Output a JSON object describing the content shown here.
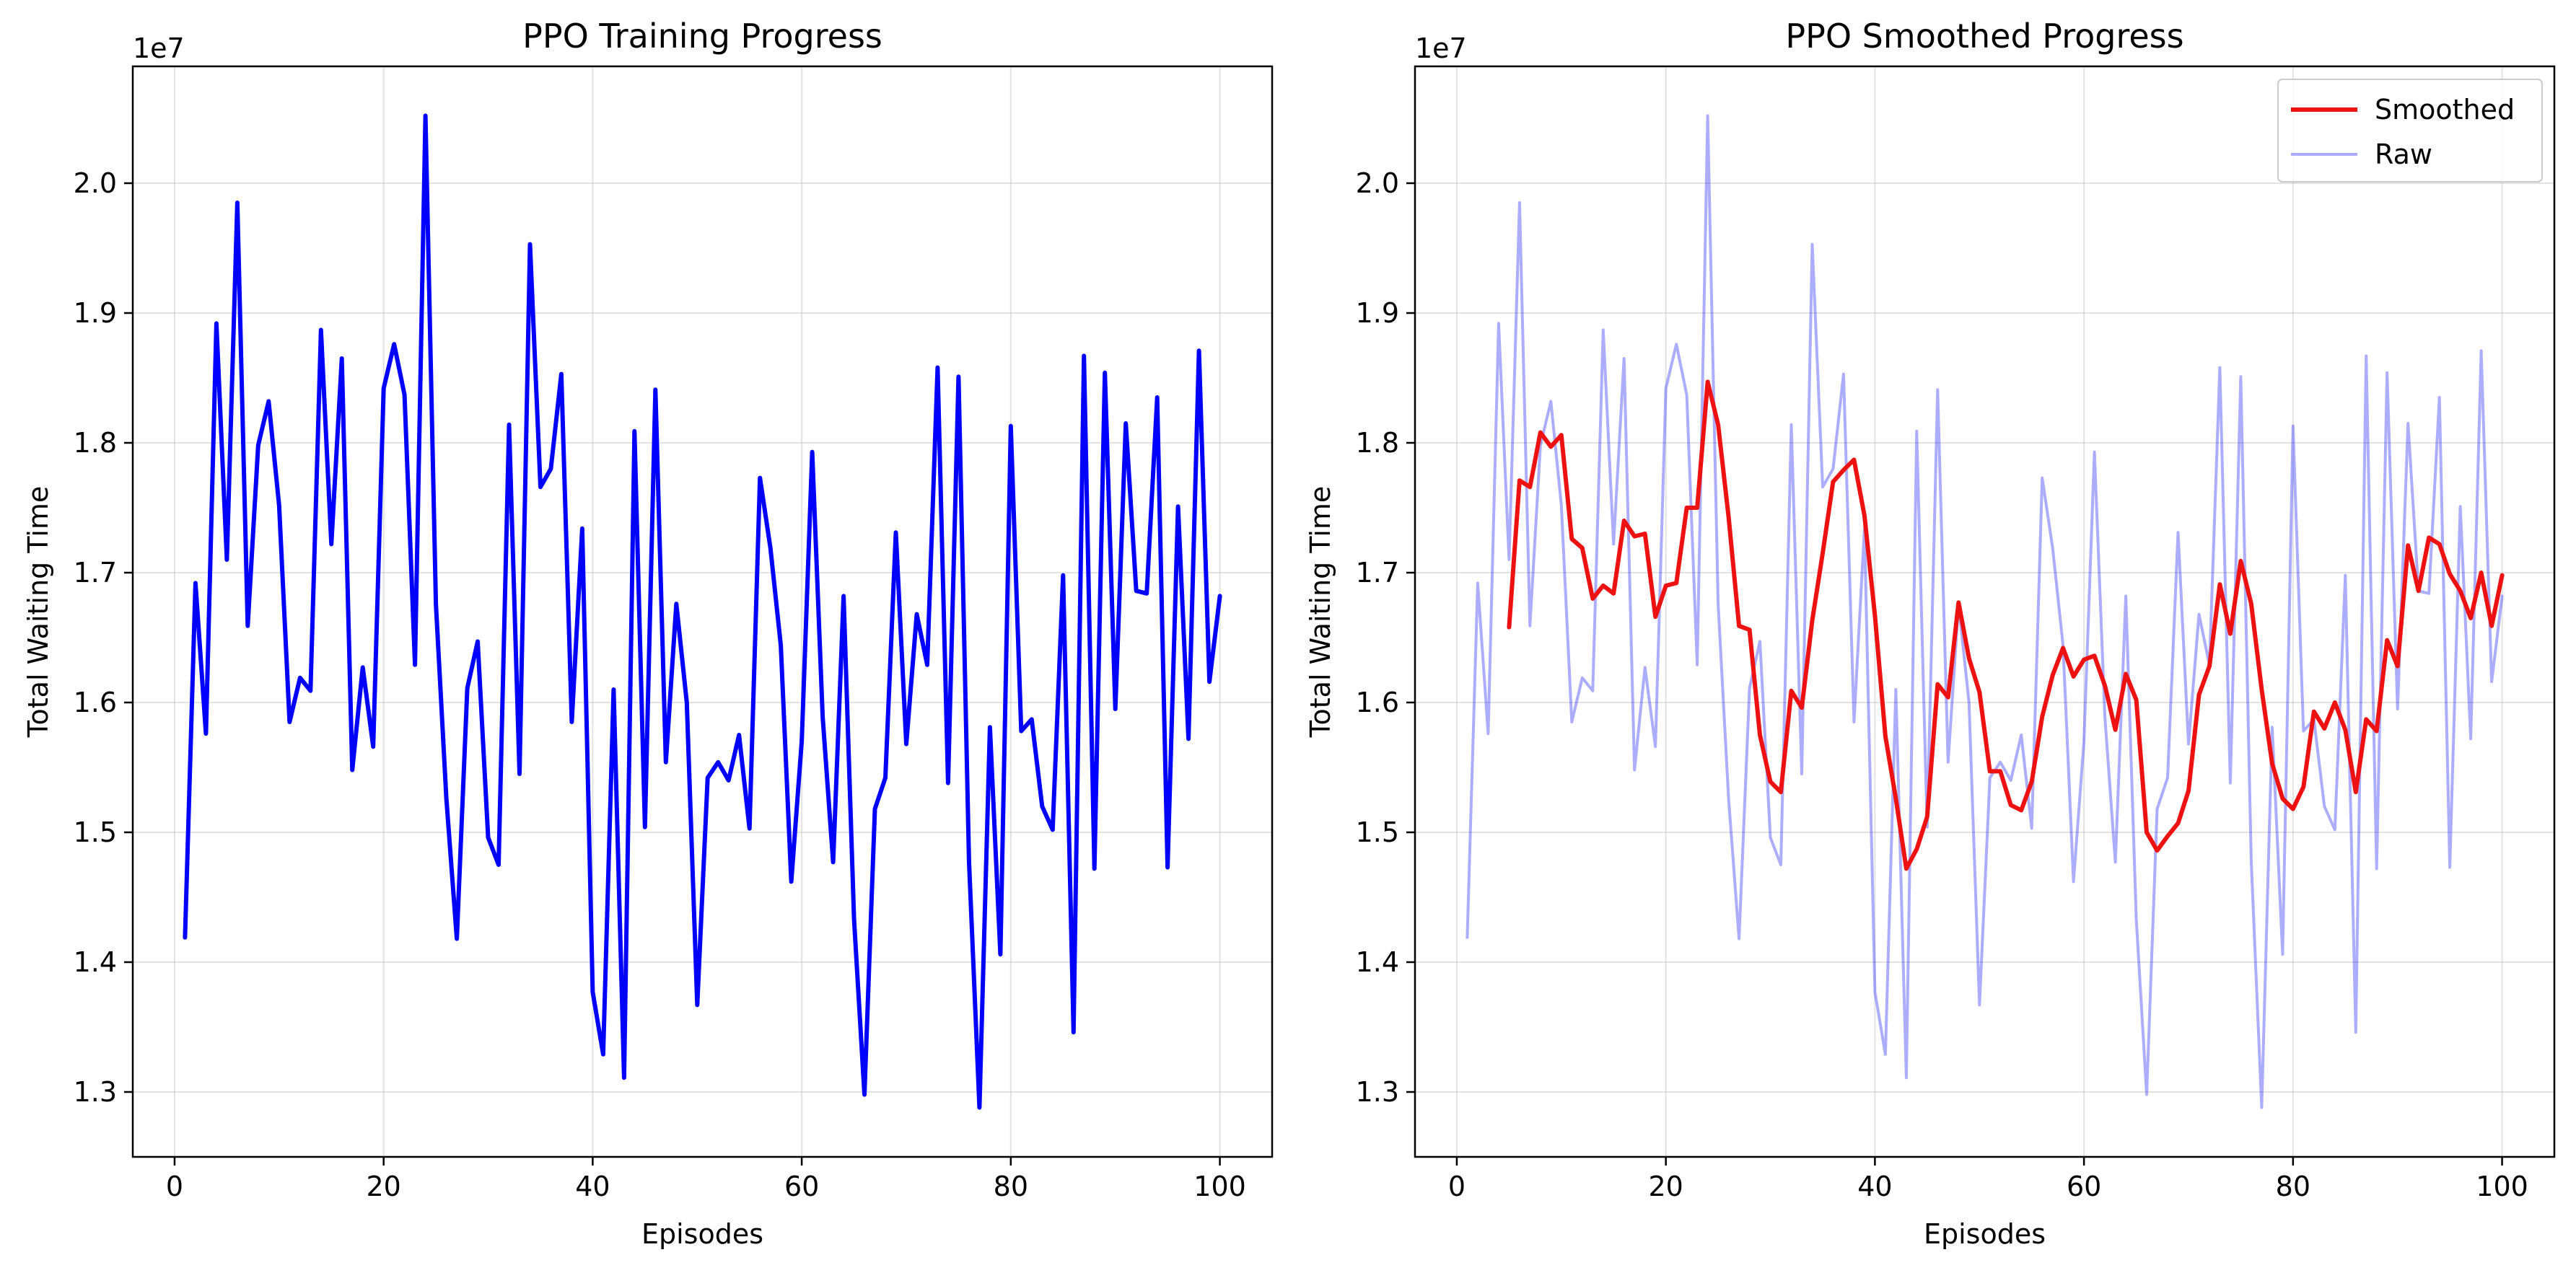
{
  "colors": {
    "raw_series": "#0000ff",
    "smoothed_series": "#ee1111",
    "raw_faded": "#0000ff",
    "grid": "#b0b0b0",
    "axes": "#000000",
    "background": "#ffffff"
  },
  "chart_data": [
    {
      "type": "line",
      "title": "PPO Training Progress",
      "xlabel": "Episodes",
      "ylabel": "Total Waiting Time",
      "y_offset_label": "1e7",
      "xlim": [
        -4,
        105
      ],
      "ylim": [
        1.25,
        2.09
      ],
      "xticks": [
        "0",
        "20",
        "40",
        "60",
        "80",
        "100"
      ],
      "xtick_values": [
        0,
        20,
        40,
        60,
        80,
        100
      ],
      "yticks": [
        "1.3",
        "1.4",
        "1.5",
        "1.6",
        "1.7",
        "1.8",
        "1.9",
        "2.0"
      ],
      "ytick_values": [
        1.3,
        1.4,
        1.5,
        1.6,
        1.7,
        1.8,
        1.9,
        2.0
      ],
      "grid": true,
      "series": [
        {
          "x": [
            1,
            2,
            3,
            4,
            5,
            6,
            7,
            8,
            9,
            10,
            11,
            12,
            13,
            14,
            15,
            16,
            17,
            18,
            19,
            20,
            21,
            22,
            23,
            24,
            25,
            26,
            27,
            28,
            29,
            30,
            31,
            32,
            33,
            34,
            35,
            36,
            37,
            38,
            39,
            40,
            41,
            42,
            43,
            44,
            45,
            46,
            47,
            48,
            49,
            50,
            51,
            52,
            53,
            54,
            55,
            56,
            57,
            58,
            59,
            60,
            61,
            62,
            63,
            64,
            65,
            66,
            67,
            68,
            69,
            70,
            71,
            72,
            73,
            74,
            75,
            76,
            77,
            78,
            79,
            80,
            81,
            82,
            83,
            84,
            85,
            86,
            87,
            88,
            89,
            90,
            91,
            92,
            93,
            94,
            95,
            96,
            97,
            98,
            99,
            100
          ],
          "values": [
            1.419,
            1.692,
            1.576,
            1.892,
            1.71,
            1.985,
            1.659,
            1.798,
            1.832,
            1.752,
            1.585,
            1.619,
            1.609,
            1.887,
            1.722,
            1.865,
            1.548,
            1.627,
            1.566,
            1.842,
            1.876,
            1.837,
            1.629,
            2.052,
            1.676,
            1.526,
            1.418,
            1.611,
            1.647,
            1.496,
            1.475,
            1.814,
            1.545,
            1.953,
            1.766,
            1.78,
            1.853,
            1.585,
            1.734,
            1.377,
            1.329,
            1.61,
            1.311,
            1.809,
            1.504,
            1.841,
            1.554,
            1.676,
            1.6,
            1.367,
            1.542,
            1.554,
            1.54,
            1.575,
            1.503,
            1.773,
            1.719,
            1.644,
            1.462,
            1.57,
            1.793,
            1.589,
            1.477,
            1.682,
            1.433,
            1.298,
            1.518,
            1.542,
            1.731,
            1.568,
            1.668,
            1.629,
            1.858,
            1.538,
            1.851,
            1.478,
            1.288,
            1.581,
            1.406,
            1.813,
            1.578,
            1.587,
            1.52,
            1.502,
            1.698,
            1.346,
            1.867,
            1.472,
            1.854,
            1.595,
            1.815,
            1.686,
            1.684,
            1.835,
            1.473,
            1.751,
            1.572,
            1.871,
            1.616,
            1.682
          ]
        }
      ]
    },
    {
      "type": "line",
      "title": "PPO Smoothed Progress",
      "xlabel": "Episodes",
      "ylabel": "Total Waiting Time",
      "y_offset_label": "1e7",
      "xlim": [
        -4,
        105
      ],
      "ylim": [
        1.25,
        2.09
      ],
      "xticks": [
        "0",
        "20",
        "40",
        "60",
        "80",
        "100"
      ],
      "xtick_values": [
        0,
        20,
        40,
        60,
        80,
        100
      ],
      "yticks": [
        "1.3",
        "1.4",
        "1.5",
        "1.6",
        "1.7",
        "1.8",
        "1.9",
        "2.0"
      ],
      "ytick_values": [
        1.3,
        1.4,
        1.5,
        1.6,
        1.7,
        1.8,
        1.9,
        2.0
      ],
      "grid": true,
      "legend_position": "top-right",
      "series": [
        {
          "name": "Smoothed",
          "x": [
            5,
            6,
            7,
            8,
            9,
            10,
            11,
            12,
            13,
            14,
            15,
            16,
            17,
            18,
            19,
            20,
            21,
            22,
            23,
            24,
            25,
            26,
            27,
            28,
            29,
            30,
            31,
            32,
            33,
            34,
            35,
            36,
            37,
            38,
            39,
            40,
            41,
            42,
            43,
            44,
            45,
            46,
            47,
            48,
            49,
            50,
            51,
            52,
            53,
            54,
            55,
            56,
            57,
            58,
            59,
            60,
            61,
            62,
            63,
            64,
            65,
            66,
            67,
            68,
            69,
            70,
            71,
            72,
            73,
            74,
            75,
            76,
            77,
            78,
            79,
            80,
            81,
            82,
            83,
            84,
            85,
            86,
            87,
            88,
            89,
            90,
            91,
            92,
            93,
            94,
            95,
            96,
            97,
            98,
            99,
            100
          ],
          "values": [
            1.658,
            1.771,
            1.766,
            1.808,
            1.797,
            1.806,
            1.726,
            1.719,
            1.68,
            1.69,
            1.684,
            1.74,
            1.728,
            1.73,
            1.666,
            1.69,
            1.692,
            1.75,
            1.75,
            1.847,
            1.814,
            1.743,
            1.659,
            1.656,
            1.575,
            1.539,
            1.531,
            1.609,
            1.596,
            1.663,
            1.715,
            1.77,
            1.779,
            1.787,
            1.744,
            1.667,
            1.574,
            1.526,
            1.472,
            1.487,
            1.512,
            1.614,
            1.604,
            1.677,
            1.634,
            1.608,
            1.547,
            1.547,
            1.521,
            1.517,
            1.539,
            1.589,
            1.621,
            1.642,
            1.62,
            1.633,
            1.636,
            1.613,
            1.579,
            1.622,
            1.602,
            1.5,
            1.486,
            1.497,
            1.507,
            1.532,
            1.606,
            1.628,
            1.691,
            1.653,
            1.709,
            1.676,
            1.61,
            1.553,
            1.526,
            1.518,
            1.535,
            1.593,
            1.58,
            1.6,
            1.579,
            1.531,
            1.587,
            1.578,
            1.648,
            1.628,
            1.721,
            1.686,
            1.727,
            1.722,
            1.699,
            1.686,
            1.665,
            1.7,
            1.659,
            1.698
          ]
        },
        {
          "name": "Raw",
          "x": [
            1,
            2,
            3,
            4,
            5,
            6,
            7,
            8,
            9,
            10,
            11,
            12,
            13,
            14,
            15,
            16,
            17,
            18,
            19,
            20,
            21,
            22,
            23,
            24,
            25,
            26,
            27,
            28,
            29,
            30,
            31,
            32,
            33,
            34,
            35,
            36,
            37,
            38,
            39,
            40,
            41,
            42,
            43,
            44,
            45,
            46,
            47,
            48,
            49,
            50,
            51,
            52,
            53,
            54,
            55,
            56,
            57,
            58,
            59,
            60,
            61,
            62,
            63,
            64,
            65,
            66,
            67,
            68,
            69,
            70,
            71,
            72,
            73,
            74,
            75,
            76,
            77,
            78,
            79,
            80,
            81,
            82,
            83,
            84,
            85,
            86,
            87,
            88,
            89,
            90,
            91,
            92,
            93,
            94,
            95,
            96,
            97,
            98,
            99,
            100
          ],
          "values": [
            1.419,
            1.692,
            1.576,
            1.892,
            1.71,
            1.985,
            1.659,
            1.798,
            1.832,
            1.752,
            1.585,
            1.619,
            1.609,
            1.887,
            1.722,
            1.865,
            1.548,
            1.627,
            1.566,
            1.842,
            1.876,
            1.837,
            1.629,
            2.052,
            1.676,
            1.526,
            1.418,
            1.611,
            1.647,
            1.496,
            1.475,
            1.814,
            1.545,
            1.953,
            1.766,
            1.78,
            1.853,
            1.585,
            1.734,
            1.377,
            1.329,
            1.61,
            1.311,
            1.809,
            1.504,
            1.841,
            1.554,
            1.676,
            1.6,
            1.367,
            1.542,
            1.554,
            1.54,
            1.575,
            1.503,
            1.773,
            1.719,
            1.644,
            1.462,
            1.57,
            1.793,
            1.589,
            1.477,
            1.682,
            1.433,
            1.298,
            1.518,
            1.542,
            1.731,
            1.568,
            1.668,
            1.629,
            1.858,
            1.538,
            1.851,
            1.478,
            1.288,
            1.581,
            1.406,
            1.813,
            1.578,
            1.587,
            1.52,
            1.502,
            1.698,
            1.346,
            1.867,
            1.472,
            1.854,
            1.595,
            1.815,
            1.686,
            1.684,
            1.835,
            1.473,
            1.751,
            1.572,
            1.871,
            1.616,
            1.682
          ]
        }
      ]
    }
  ]
}
